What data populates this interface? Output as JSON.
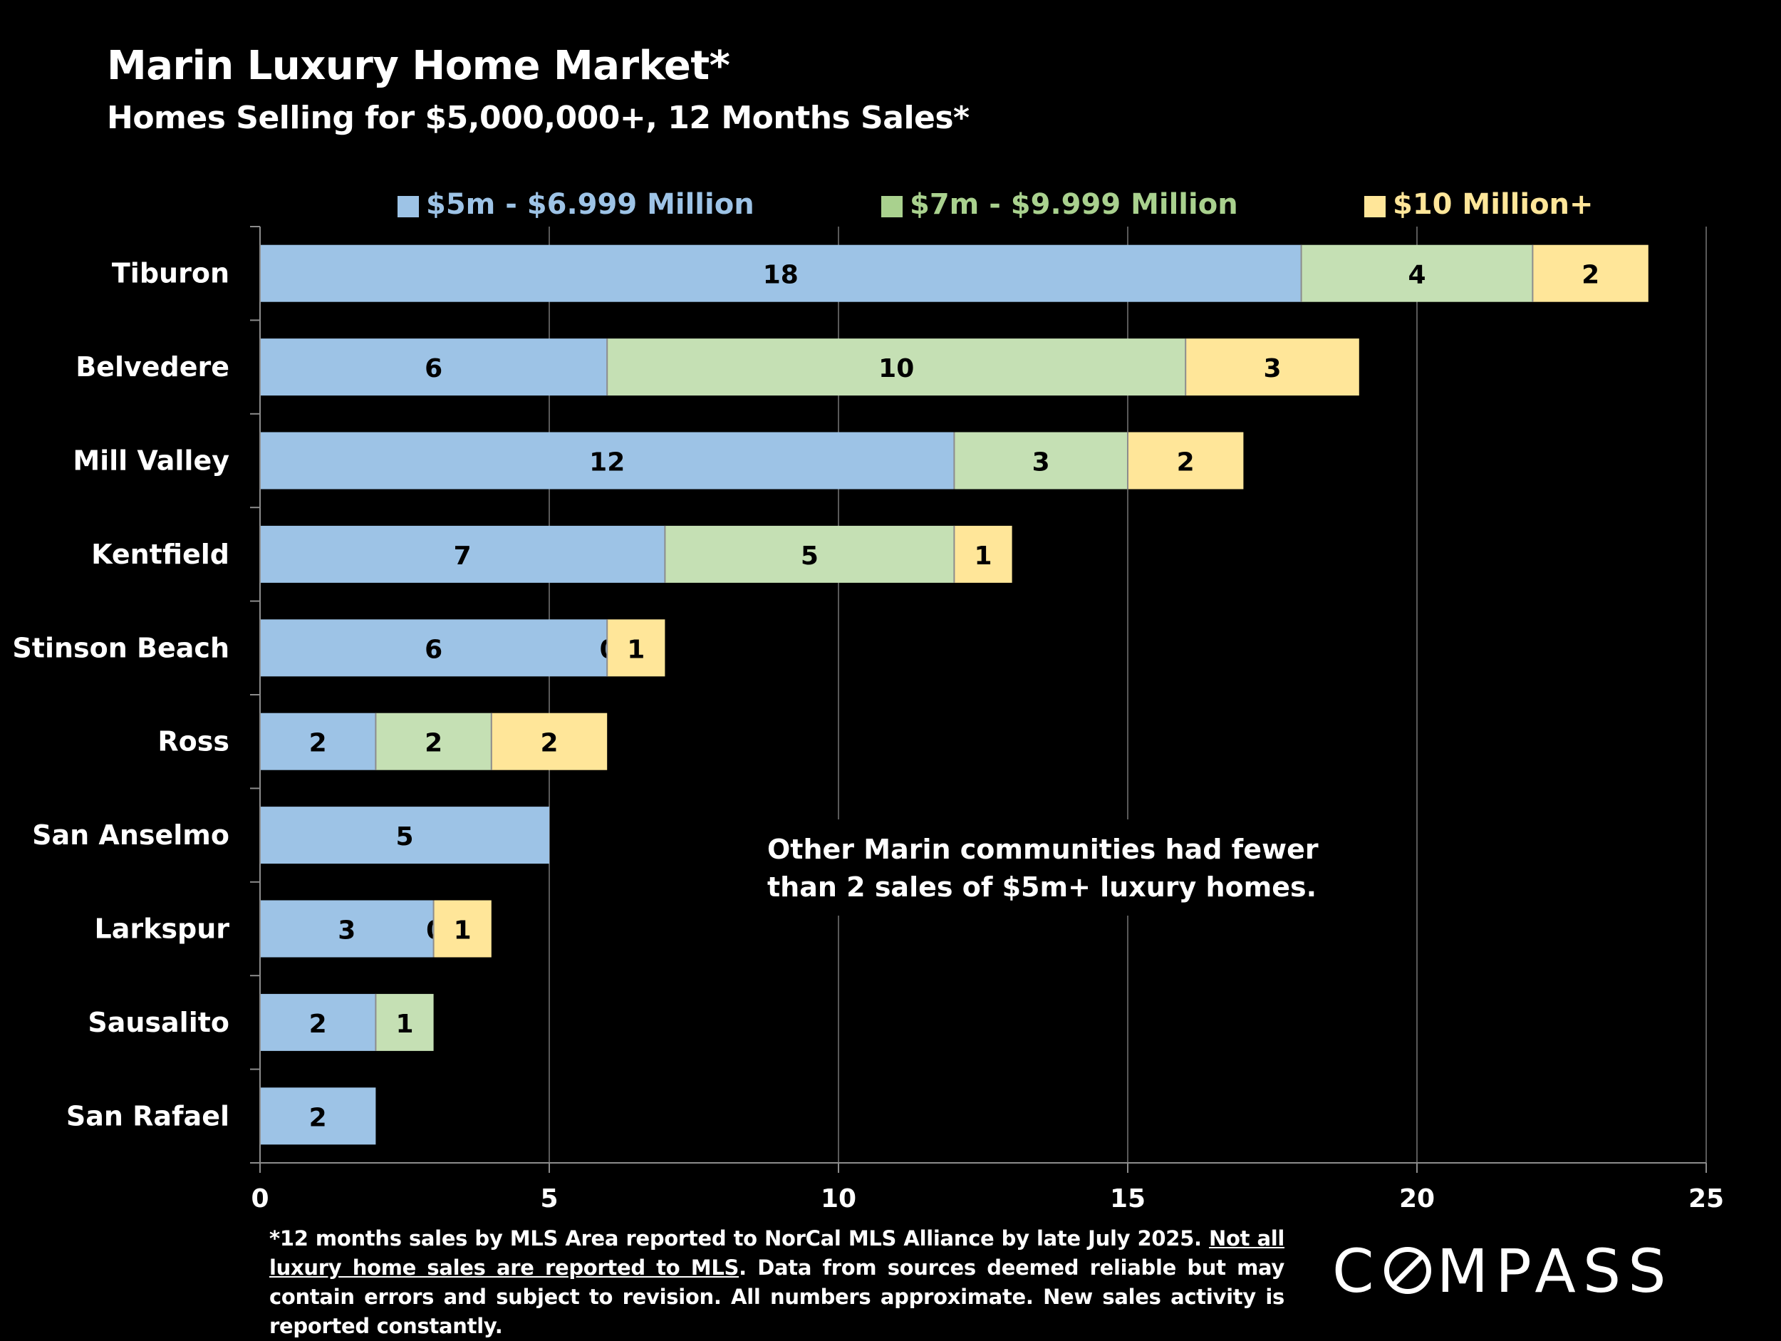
{
  "header": {
    "title": "Marin Luxury Home Market*",
    "subtitle": "Homes Selling for $5,000,000+, 12 Months Sales*"
  },
  "chart_data": {
    "type": "bar",
    "orientation": "horizontal",
    "stacked": true,
    "categories": [
      "Tiburon",
      "Belvedere",
      "Mill Valley",
      "Kentfield",
      "Stinson Beach",
      "Ross",
      "San Anselmo",
      "Larkspur",
      "Sausalito",
      "San Rafael"
    ],
    "series": [
      {
        "name": "$5m - $6.999 Million",
        "color": "#9dc3e6",
        "legend_color": "#9dc3e6",
        "values": [
          18,
          6,
          12,
          7,
          6,
          2,
          5,
          3,
          2,
          2
        ]
      },
      {
        "name": "$7m - $9.999 Million",
        "color": "#c5e0b4",
        "legend_color": "#a9d18e",
        "values": [
          4,
          10,
          3,
          5,
          0,
          2,
          null,
          0,
          1,
          null
        ]
      },
      {
        "name": "$10 Million+",
        "color": "#ffe699",
        "legend_color": "#ffe699",
        "values": [
          2,
          3,
          2,
          1,
          1,
          2,
          null,
          1,
          null,
          null
        ]
      }
    ],
    "xlim": [
      0,
      25
    ],
    "xticks": [
      0,
      5,
      10,
      15,
      20,
      25
    ],
    "grid": true,
    "legend_position": "top",
    "annotation": "Other Marin communities had fewer than 2 sales of $5m+ luxury homes."
  },
  "footnote": {
    "part1": "*12 months sales by MLS Area reported to NorCal MLS Alliance by late July 2025. ",
    "link": "Not all luxury home sales are reported to MLS",
    "part2": ". Data from sources deemed reliable but may contain errors and subject to revision. All numbers approximate. New sales activity is reported constantly."
  },
  "logo": {
    "left": "C",
    "right": "MPASS"
  }
}
